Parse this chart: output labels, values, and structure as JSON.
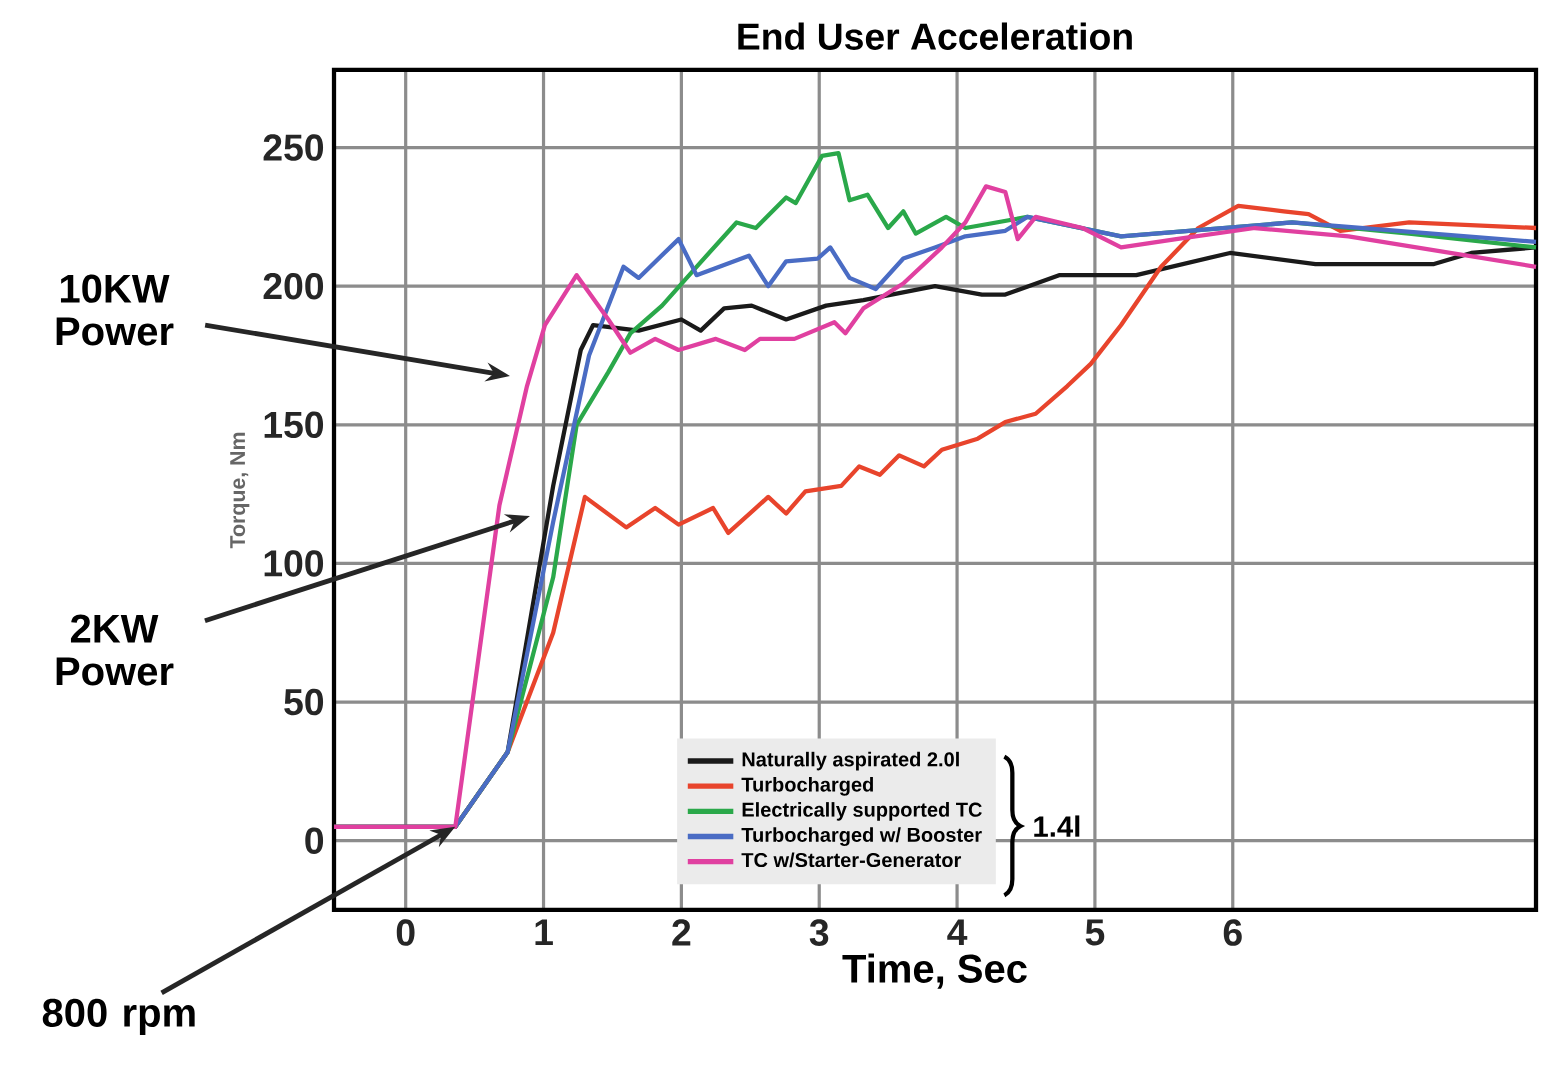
{
  "chart_data": {
    "type": "line",
    "title": "End User Acceleration",
    "xlabel": "Time, Sec",
    "ylabel": "Torque, Nm",
    "xlim": [
      -0.52,
      8.2
    ],
    "ylim": [
      -25,
      278
    ],
    "xticks": [
      0,
      1,
      2,
      3,
      4,
      5,
      6
    ],
    "yticks": [
      0,
      50,
      100,
      150,
      200,
      250
    ],
    "grid": true,
    "legend": "bottom",
    "marker": "none",
    "line_style": "solid",
    "annotations": [
      "10KW Power",
      "2KW Power",
      {
        "text": "800 rpm",
        "x": 0.36,
        "y": 5
      },
      "1.4l"
    ],
    "series": [
      {
        "name": "Naturally aspirated 2.0l",
        "color": "#1a1a1a",
        "x": [
          -0.52,
          0.36,
          0.74,
          1.07,
          1.27,
          1.36,
          1.69,
          2.0,
          2.14,
          2.31,
          2.51,
          2.76,
          3.05,
          3.32,
          3.84,
          4.18,
          4.35,
          4.74,
          5.3,
          5.98,
          6.6,
          7.46,
          7.73,
          8.2
        ],
        "values": [
          5,
          5,
          32,
          128,
          177,
          186,
          184,
          188,
          184,
          192,
          193,
          188,
          193,
          195,
          200,
          197,
          197,
          204,
          204,
          212,
          208,
          208,
          212,
          214
        ]
      },
      {
        "name": "Turbocharged",
        "color": "#e8442c",
        "x": [
          -0.52,
          0.36,
          0.74,
          1.07,
          1.3,
          1.6,
          1.81,
          1.98,
          2.23,
          2.34,
          2.63,
          2.76,
          2.9,
          3.16,
          3.29,
          3.44,
          3.58,
          3.76,
          3.89,
          4.15,
          4.35,
          4.57,
          4.8,
          4.97,
          5.19,
          5.48,
          5.75,
          6.04,
          6.37,
          6.55,
          6.78,
          7.28,
          8.2
        ],
        "values": [
          5,
          5,
          32,
          75,
          124,
          113,
          120,
          114,
          120,
          111,
          124,
          118,
          126,
          128,
          135,
          132,
          139,
          135,
          141,
          145,
          151,
          154,
          164,
          172,
          186,
          207,
          221,
          229,
          227,
          226,
          220,
          223,
          221
        ]
      },
      {
        "name": "Electrically supported TC",
        "color": "#2aa84a",
        "x": [
          -0.52,
          0.36,
          0.74,
          1.07,
          1.24,
          1.47,
          1.63,
          1.86,
          2.11,
          2.4,
          2.54,
          2.76,
          2.83,
          3.02,
          3.14,
          3.22,
          3.35,
          3.5,
          3.61,
          3.7,
          3.92,
          4.06,
          4.51,
          5.19,
          6.43,
          7.28,
          8.2
        ],
        "values": [
          5,
          5,
          32,
          95,
          150,
          169,
          183,
          193,
          207,
          223,
          221,
          232,
          230,
          247,
          248,
          231,
          233,
          221,
          227,
          219,
          225,
          221,
          225,
          218,
          223,
          219,
          214
        ]
      },
      {
        "name": "Turbocharged w/ Booster",
        "color": "#4a6cc4",
        "x": [
          -0.52,
          0.36,
          0.74,
          1.07,
          1.33,
          1.58,
          1.69,
          1.98,
          2.11,
          2.49,
          2.63,
          2.76,
          2.99,
          3.08,
          3.22,
          3.41,
          3.61,
          3.84,
          4.06,
          4.35,
          4.51,
          5.19,
          6.43,
          8.2
        ],
        "values": [
          5,
          5,
          32,
          115,
          175,
          207,
          203,
          217,
          204,
          211,
          200,
          209,
          210,
          214,
          203,
          199,
          210,
          214,
          218,
          220,
          225,
          218,
          223,
          216
        ]
      },
      {
        "name": "TC w/Starter-Generator",
        "color": "#e040a0",
        "x": [
          -0.52,
          0.36,
          0.68,
          0.88,
          1.01,
          1.24,
          1.47,
          1.63,
          1.81,
          1.98,
          2.25,
          2.46,
          2.57,
          2.82,
          3.11,
          3.19,
          3.32,
          3.61,
          3.89,
          4.06,
          4.21,
          4.35,
          4.44,
          4.57,
          4.91,
          5.19,
          5.59,
          6.16,
          6.84,
          8.2
        ],
        "values": [
          5,
          5,
          121,
          164,
          186,
          204,
          188,
          176,
          181,
          177,
          181,
          177,
          181,
          181,
          187,
          183,
          192,
          201,
          214,
          223,
          236,
          234,
          217,
          225,
          221,
          214,
          217,
          221,
          218,
          207
        ]
      }
    ]
  }
}
